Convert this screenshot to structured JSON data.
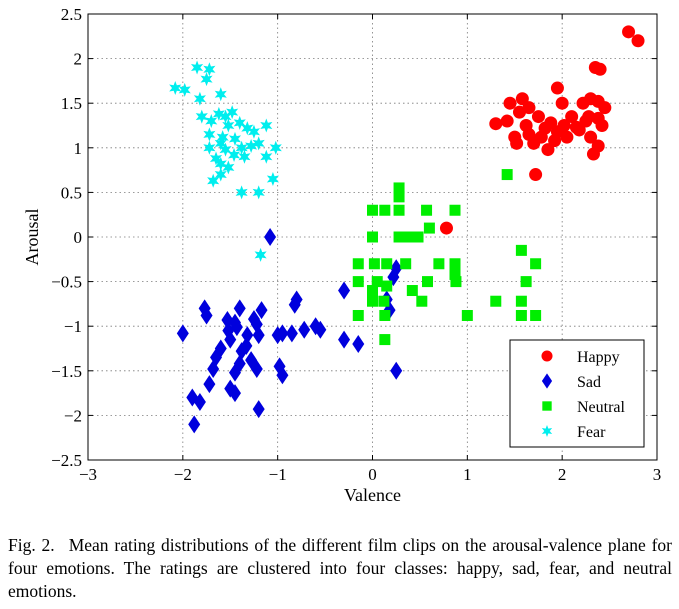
{
  "chart_data": {
    "type": "scatter",
    "title": "",
    "xlabel": "Valence",
    "ylabel": "Arousal",
    "xlim": [
      -3,
      3
    ],
    "ylim": [
      -2.5,
      2.5
    ],
    "grid": true,
    "legend_position": "bottom-right",
    "xticks": [
      -3,
      -2,
      -1,
      0,
      1,
      2,
      3
    ],
    "xtick_labels": [
      "−3",
      "−2",
      "−1",
      "0",
      "1",
      "2",
      "3"
    ],
    "yticks": [
      -2.5,
      -2,
      -1.5,
      -1,
      -0.5,
      0,
      0.5,
      1,
      1.5,
      2,
      2.5
    ],
    "ytick_labels": [
      "−2.5",
      "−2",
      "−1.5",
      "−1",
      "−0.5",
      "0",
      "0.5",
      "1",
      "1.5",
      "2",
      "2.5"
    ],
    "series": [
      {
        "name": "Happy",
        "marker": "circle",
        "color": "#ff0000",
        "points": [
          [
            2.7,
            2.3
          ],
          [
            2.8,
            2.2
          ],
          [
            2.35,
            1.9
          ],
          [
            2.4,
            1.88
          ],
          [
            1.95,
            1.67
          ],
          [
            1.45,
            1.5
          ],
          [
            1.58,
            1.55
          ],
          [
            2.0,
            1.5
          ],
          [
            2.22,
            1.5
          ],
          [
            2.3,
            1.55
          ],
          [
            2.38,
            1.52
          ],
          [
            1.65,
            1.45
          ],
          [
            2.45,
            1.45
          ],
          [
            1.3,
            1.27
          ],
          [
            1.42,
            1.3
          ],
          [
            1.55,
            1.4
          ],
          [
            1.75,
            1.35
          ],
          [
            2.1,
            1.35
          ],
          [
            2.28,
            1.35
          ],
          [
            2.38,
            1.33
          ],
          [
            1.62,
            1.25
          ],
          [
            1.82,
            1.22
          ],
          [
            1.95,
            1.18
          ],
          [
            2.02,
            1.25
          ],
          [
            2.15,
            1.23
          ],
          [
            2.25,
            1.3
          ],
          [
            2.42,
            1.25
          ],
          [
            1.5,
            1.12
          ],
          [
            1.65,
            1.15
          ],
          [
            1.78,
            1.12
          ],
          [
            1.88,
            1.28
          ],
          [
            2.05,
            1.12
          ],
          [
            2.18,
            1.2
          ],
          [
            2.3,
            1.12
          ],
          [
            1.52,
            1.05
          ],
          [
            1.7,
            1.05
          ],
          [
            1.92,
            1.08
          ],
          [
            2.38,
            1.02
          ],
          [
            1.85,
            0.98
          ],
          [
            2.33,
            0.93
          ],
          [
            1.72,
            0.7
          ],
          [
            0.78,
            0.1
          ]
        ]
      },
      {
        "name": "Sad",
        "marker": "diamond",
        "color": "#0000dd",
        "points": [
          [
            -1.08,
            0.0
          ],
          [
            0.25,
            -0.35
          ],
          [
            0.22,
            -0.45
          ],
          [
            -0.3,
            -0.6
          ],
          [
            -1.77,
            -0.8
          ],
          [
            -1.75,
            -0.88
          ],
          [
            -1.4,
            -0.8
          ],
          [
            -1.17,
            -0.82
          ],
          [
            -0.8,
            -0.7
          ],
          [
            -0.82,
            -0.76
          ],
          [
            0.15,
            -0.7
          ],
          [
            0.18,
            -0.82
          ],
          [
            -1.53,
            -0.93
          ],
          [
            -1.45,
            -0.96
          ],
          [
            -1.25,
            -0.92
          ],
          [
            -1.22,
            -0.98
          ],
          [
            -2.0,
            -1.08
          ],
          [
            -1.52,
            -1.05
          ],
          [
            -1.43,
            -1.01
          ],
          [
            -1.32,
            -1.1
          ],
          [
            -1.0,
            -1.1
          ],
          [
            -0.6,
            -1.0
          ],
          [
            -0.72,
            -1.04
          ],
          [
            -0.55,
            -1.04
          ],
          [
            -0.95,
            -1.08
          ],
          [
            -0.85,
            -1.08
          ],
          [
            -1.5,
            -1.15
          ],
          [
            -1.33,
            -1.22
          ],
          [
            -1.2,
            -1.1
          ],
          [
            -0.3,
            -1.15
          ],
          [
            -1.6,
            -1.25
          ],
          [
            -1.38,
            -1.28
          ],
          [
            -1.28,
            -1.38
          ],
          [
            -0.15,
            -1.2
          ],
          [
            -1.65,
            -1.35
          ],
          [
            -1.4,
            -1.42
          ],
          [
            -1.22,
            -1.48
          ],
          [
            -0.98,
            -1.45
          ],
          [
            -1.68,
            -1.48
          ],
          [
            -1.45,
            -1.52
          ],
          [
            -0.95,
            -1.55
          ],
          [
            0.25,
            -1.5
          ],
          [
            -1.72,
            -1.65
          ],
          [
            -1.5,
            -1.7
          ],
          [
            -1.45,
            -1.75
          ],
          [
            -1.9,
            -1.8
          ],
          [
            -1.82,
            -1.85
          ],
          [
            -1.2,
            -1.93
          ],
          [
            -1.88,
            -2.1
          ]
        ]
      },
      {
        "name": "Neutral",
        "marker": "square",
        "color": "#00ee00",
        "points": [
          [
            0.28,
            0.55
          ],
          [
            0.28,
            0.45
          ],
          [
            0.28,
            0.3
          ],
          [
            0.0,
            0.3
          ],
          [
            0.13,
            0.3
          ],
          [
            0.57,
            0.3
          ],
          [
            0.87,
            0.3
          ],
          [
            1.42,
            0.7
          ],
          [
            0.6,
            0.1
          ],
          [
            0.0,
            0.0
          ],
          [
            0.28,
            0.0
          ],
          [
            0.38,
            0.0
          ],
          [
            0.48,
            0.0
          ],
          [
            1.57,
            -0.15
          ],
          [
            -0.15,
            -0.3
          ],
          [
            0.02,
            -0.3
          ],
          [
            0.15,
            -0.3
          ],
          [
            0.35,
            -0.3
          ],
          [
            0.7,
            -0.3
          ],
          [
            0.87,
            -0.3
          ],
          [
            1.72,
            -0.3
          ],
          [
            0.87,
            -0.42
          ],
          [
            -0.15,
            -0.5
          ],
          [
            0.05,
            -0.5
          ],
          [
            0.58,
            -0.5
          ],
          [
            0.88,
            -0.5
          ],
          [
            1.62,
            -0.5
          ],
          [
            0.15,
            -0.55
          ],
          [
            0.0,
            -0.6
          ],
          [
            0.42,
            -0.6
          ],
          [
            0.0,
            -0.72
          ],
          [
            0.12,
            -0.72
          ],
          [
            0.52,
            -0.72
          ],
          [
            1.3,
            -0.72
          ],
          [
            1.57,
            -0.72
          ],
          [
            -0.15,
            -0.88
          ],
          [
            0.13,
            -0.88
          ],
          [
            1.0,
            -0.88
          ],
          [
            1.57,
            -0.88
          ],
          [
            1.72,
            -0.88
          ],
          [
            0.13,
            -1.15
          ]
        ]
      },
      {
        "name": "Fear",
        "marker": "star",
        "color": "#00eeee",
        "points": [
          [
            -1.85,
            1.9
          ],
          [
            -1.72,
            1.88
          ],
          [
            -1.75,
            1.77
          ],
          [
            -2.08,
            1.67
          ],
          [
            -1.98,
            1.65
          ],
          [
            -1.6,
            1.6
          ],
          [
            -1.82,
            1.55
          ],
          [
            -1.62,
            1.38
          ],
          [
            -1.55,
            1.35
          ],
          [
            -1.48,
            1.4
          ],
          [
            -1.8,
            1.35
          ],
          [
            -1.7,
            1.3
          ],
          [
            -1.52,
            1.25
          ],
          [
            -1.4,
            1.28
          ],
          [
            -1.32,
            1.22
          ],
          [
            -1.12,
            1.25
          ],
          [
            -1.25,
            1.18
          ],
          [
            -1.72,
            1.15
          ],
          [
            -1.58,
            1.12
          ],
          [
            -1.45,
            1.1
          ],
          [
            -1.6,
            1.05
          ],
          [
            -1.2,
            1.05
          ],
          [
            -1.55,
            0.98
          ],
          [
            -1.38,
            1.0
          ],
          [
            -1.28,
            1.02
          ],
          [
            -1.02,
            1.0
          ],
          [
            -1.72,
            1.0
          ],
          [
            -1.46,
            0.92
          ],
          [
            -1.65,
            0.88
          ],
          [
            -1.35,
            0.9
          ],
          [
            -1.12,
            0.9
          ],
          [
            -1.6,
            0.82
          ],
          [
            -1.52,
            0.78
          ],
          [
            -1.6,
            0.7
          ],
          [
            -1.68,
            0.63
          ],
          [
            -1.05,
            0.65
          ],
          [
            -1.38,
            0.5
          ],
          [
            -1.2,
            0.5
          ],
          [
            -1.18,
            -0.2
          ]
        ]
      }
    ]
  },
  "caption": {
    "label": "Fig. 2.",
    "text": "Mean rating distributions of the different film clips on the arousal-valence plane for four emotions. The ratings are clustered into four classes: happy, sad, fear, and neutral emotions."
  }
}
